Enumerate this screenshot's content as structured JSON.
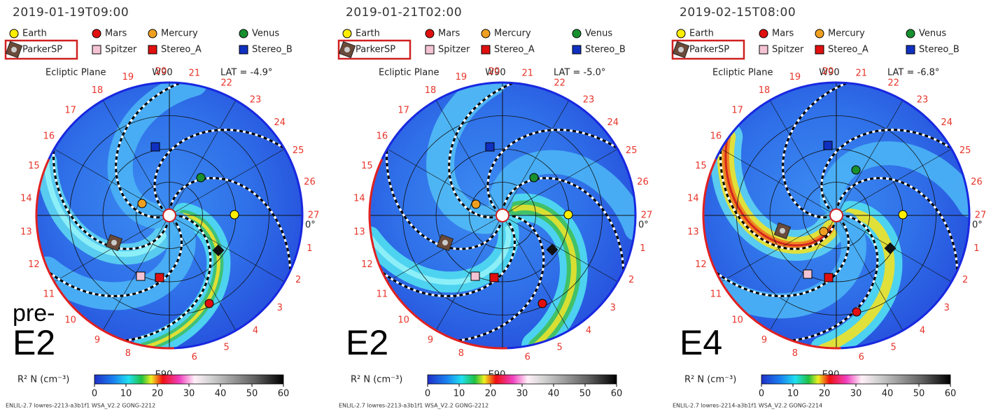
{
  "legend": {
    "items": [
      {
        "name": "Earth",
        "color": "#ffee00",
        "shape": "circle"
      },
      {
        "name": "Mars",
        "color": "#e01010",
        "shape": "circle"
      },
      {
        "name": "Mercury",
        "color": "#f0a020",
        "shape": "circle"
      },
      {
        "name": "Venus",
        "color": "#189030",
        "shape": "circle"
      },
      {
        "name": "ParkerSP",
        "color": "#6a4a3a",
        "shape": "probe"
      },
      {
        "name": "Spitzer",
        "color": "#f4c4d4",
        "shape": "square"
      },
      {
        "name": "Stereo_A",
        "color": "#e01010",
        "shape": "square"
      },
      {
        "name": "Stereo_B",
        "color": "#1030c0",
        "shape": "square"
      }
    ]
  },
  "colorbar": {
    "label": "R² N (cm⁻³)",
    "lim": [
      0,
      60
    ],
    "ticks": [
      0,
      10,
      20,
      30,
      40,
      50,
      60
    ]
  },
  "orbit_labels": {
    "plane": "Ecliptic Plane",
    "top": "W90",
    "bottom": "E90",
    "zero": "0°"
  },
  "sector_labels": [
    1,
    2,
    3,
    4,
    5,
    6,
    8,
    9,
    10,
    11,
    12,
    13,
    14,
    15,
    16,
    17,
    18,
    19,
    20,
    21,
    22,
    23,
    24,
    25,
    26,
    27
  ],
  "panels": [
    {
      "time": "2019-01-19T09:00",
      "lat": "LAT = -4.9°",
      "tag": [
        "pre-",
        "E2"
      ],
      "footer": "ENLIL-2.7 lowres-2213-a3b1f1 WSA_V2.2 GONG-2212"
    },
    {
      "time": "2019-01-21T02:00",
      "lat": "LAT = -5.0°",
      "tag": [
        "E2"
      ],
      "footer": "ENLIL-2.7 lowres-2213-a3b1f1 WSA_V2.2 GONG-2212"
    },
    {
      "time": "2019-02-15T08:00",
      "lat": "LAT = -6.8°",
      "tag": [
        "E4"
      ],
      "footer": "ENLIL-2.7 lowres-2214-a3b1f1 WSA_V2.2 GONG-2214"
    }
  ]
}
